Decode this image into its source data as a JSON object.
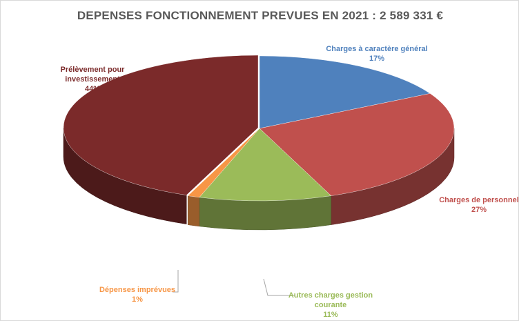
{
  "chart_data": {
    "type": "pie",
    "title": "DEPENSES FONCTIONNEMENT PREVUES EN 2021 : 2 589 331 €",
    "slices": [
      {
        "label": "Charges à caractère général",
        "pct_label": "17%",
        "value": 17,
        "color": "#4f81bd"
      },
      {
        "label": "Charges de personnel",
        "pct_label": "27%",
        "value": 27,
        "color": "#c0504d"
      },
      {
        "label": "Autres charges gestion courante",
        "pct_label": "11%",
        "value": 11,
        "color": "#9bbb59"
      },
      {
        "label": "Dépenses imprévues",
        "pct_label": "1%",
        "value": 1,
        "color": "#f79646"
      },
      {
        "label": "Prélèvement pour investissement",
        "pct_label": "44%",
        "value": 44,
        "color": "#7b2a2a"
      }
    ]
  }
}
